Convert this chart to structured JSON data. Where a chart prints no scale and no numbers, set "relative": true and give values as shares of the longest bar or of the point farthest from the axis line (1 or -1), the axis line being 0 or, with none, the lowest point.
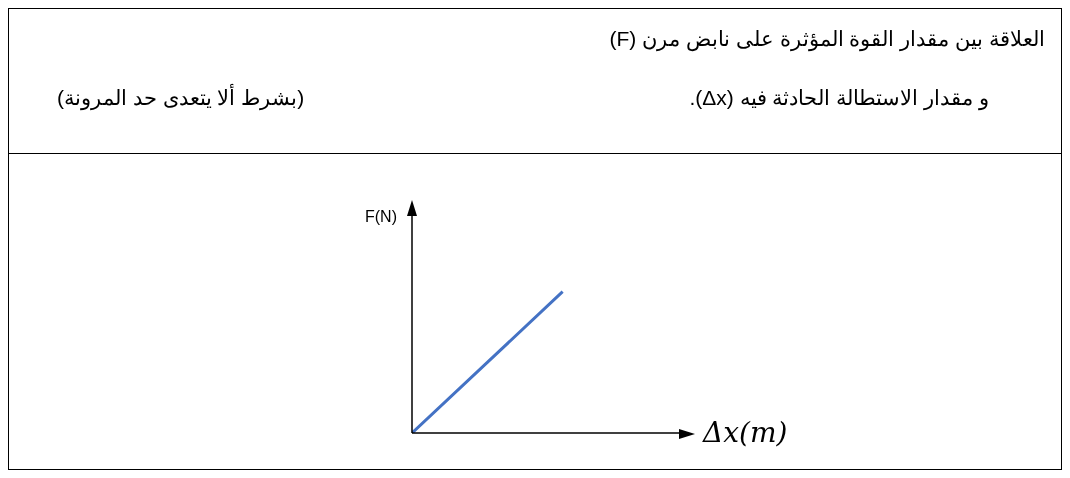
{
  "chart_data": {
    "type": "line",
    "title": "العلاقة بين مقدار القوة المؤثرة  على نابض مرن (F)",
    "subtitle": "و مقدار الاستطالة الحادثة فيه (Δx).",
    "annotations": [
      "(بشرط ألا يتعدى حد المرونة)"
    ],
    "xlabel": "Δx(m)",
    "ylabel": "F(N)",
    "relative": true,
    "categories": [
      null,
      null,
      null
    ],
    "values": [
      0,
      0.5,
      1
    ],
    "color": "#4472c4"
  }
}
